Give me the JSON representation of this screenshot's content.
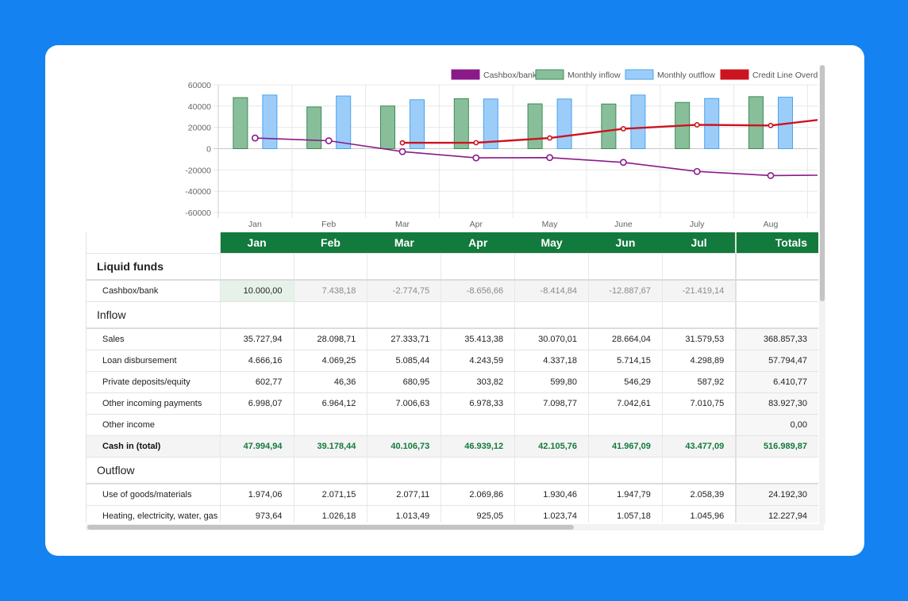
{
  "chart_data": {
    "type": "bar",
    "categories": [
      "Jan",
      "Feb",
      "Mar",
      "Apr",
      "May",
      "June",
      "July",
      "Aug"
    ],
    "ylim": [
      -60000,
      60000
    ],
    "yticks": [
      "60000",
      "40000",
      "20000",
      "0",
      "-20000",
      "-40000",
      "-60000"
    ],
    "ytick_values": [
      60000,
      40000,
      20000,
      0,
      -20000,
      -40000,
      -60000
    ],
    "legend_position": "top-right",
    "series": [
      {
        "name": "Cashbox/bank",
        "kind": "line",
        "color": "#8a1a8a",
        "values": [
          10000,
          7438,
          -2775,
          -8657,
          -8415,
          -12888,
          -21419,
          -25300
        ],
        "trailing": -25000
      },
      {
        "name": "Monthly inflow",
        "kind": "bar",
        "color": "#88bf9a",
        "stroke": "#3c8a57",
        "values": [
          47995,
          39178,
          40107,
          46939,
          42106,
          41967,
          43477,
          48900
        ]
      },
      {
        "name": "Monthly outflow",
        "kind": "bar",
        "color": "#9ccdf9",
        "stroke": "#4aa3ee",
        "values": [
          50400,
          49500,
          46000,
          46700,
          46700,
          50400,
          47200,
          48400
        ]
      },
      {
        "name": "Credit Line Overd",
        "kind": "line",
        "color": "#cc1420",
        "values": [
          null,
          null,
          5500,
          5600,
          10000,
          18700,
          22400,
          21800
        ],
        "trailing": 27000
      }
    ],
    "grid": true
  },
  "table": {
    "months": [
      "Jan",
      "Feb",
      "Mar",
      "Apr",
      "May",
      "Jun",
      "Jul"
    ],
    "totals_label": "Totals",
    "sections": [
      {
        "title": "Liquid funds",
        "style": "lf",
        "rows": [
          {
            "label": "Cashbox/bank",
            "type": "cash",
            "values": [
              "10.000,00",
              "7.438,18",
              "-2.774,75",
              "-8.656,66",
              "-8.414,84",
              "-12.887,67",
              "-21.419,14"
            ],
            "total": ""
          }
        ]
      },
      {
        "title": "Inflow",
        "style": "in",
        "rows": [
          {
            "label": "Sales",
            "type": "normal",
            "values": [
              "35.727,94",
              "28.098,71",
              "27.333,71",
              "35.413,38",
              "30.070,01",
              "28.664,04",
              "31.579,53"
            ],
            "total": "368.857,33"
          },
          {
            "label": "Loan disbursement",
            "type": "normal",
            "values": [
              "4.666,16",
              "4.069,25",
              "5.085,44",
              "4.243,59",
              "4.337,18",
              "5.714,15",
              "4.298,89"
            ],
            "total": "57.794,47"
          },
          {
            "label": "Private deposits/equity",
            "type": "normal",
            "values": [
              "602,77",
              "46,36",
              "680,95",
              "303,82",
              "599,80",
              "546,29",
              "587,92"
            ],
            "total": "6.410,77"
          },
          {
            "label": "Other incoming payments",
            "type": "normal",
            "values": [
              "6.998,07",
              "6.964,12",
              "7.006,63",
              "6.978,33",
              "7.098,77",
              "7.042,61",
              "7.010,75"
            ],
            "total": "83.927,30"
          },
          {
            "label": "Other income",
            "type": "normal",
            "values": [
              "",
              "",
              "",
              "",
              "",
              "",
              ""
            ],
            "total": "0,00"
          },
          {
            "label": "Cash in (total)",
            "type": "total",
            "values": [
              "47.994,94",
              "39.178,44",
              "40.106,73",
              "46.939,12",
              "42.105,76",
              "41.967,09",
              "43.477,09"
            ],
            "total": "516.989,87"
          }
        ]
      },
      {
        "title": "Outflow",
        "style": "out",
        "rows": [
          {
            "label": "Use of goods/materials",
            "type": "normal",
            "values": [
              "1.974,06",
              "2.071,15",
              "2.077,11",
              "2.069,86",
              "1.930,46",
              "1.947,79",
              "2.058,39"
            ],
            "total": "24.192,30"
          },
          {
            "label": "Heating, electricity, water, gas",
            "type": "normal",
            "values": [
              "973,64",
              "1.026,18",
              "1.013,49",
              "925,05",
              "1.023,74",
              "1.057,18",
              "1.045,96"
            ],
            "total": "12.227,94"
          }
        ]
      }
    ]
  }
}
